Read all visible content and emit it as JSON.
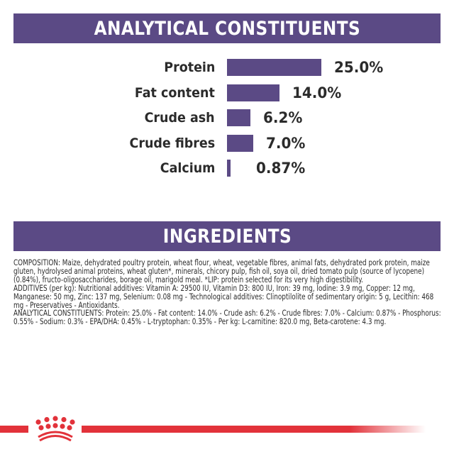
{
  "sections": {
    "analytical": {
      "title": "ANALYTICAL CONSTITUENTS"
    },
    "ingredients": {
      "title": "INGREDIENTS"
    }
  },
  "colors": {
    "accent_purple": "#5b4a85",
    "brand_red": "#e2323a",
    "text": "#2b2b2b"
  },
  "constituents": [
    {
      "label": "Protein",
      "value": "25.0%",
      "percent": 25.0
    },
    {
      "label": "Fat content",
      "value": "14.0%",
      "percent": 14.0
    },
    {
      "label": "Crude ash",
      "value": "6.2%",
      "percent": 6.2
    },
    {
      "label": "Crude fibres",
      "value": "7.0%",
      "percent": 7.0
    },
    {
      "label": "Calcium",
      "value": "0.87%",
      "percent": 0.87
    }
  ],
  "ingredients": {
    "composition": "COMPOSITION: Maize, dehydrated poultry protein, wheat flour, wheat, vegetable fibres, animal fats, dehydrated pork protein, maize gluten, hydrolysed animal proteins, wheat gluten*, minerals, chicory pulp, fish oil, soya oil, dried tomato pulp (source of lycopene) (0.84%), fructo-oligosaccharides, borage oil, marigold meal. *LIP: protein selected for its very high digestibility.",
    "additives": "ADDITIVES (per kg): Nutritional additives: Vitamin A: 29500 IU, Vitamin D3: 800 IU, Iron: 39 mg, Iodine: 3.9 mg, Copper: 12 mg, Manganese: 50 mg, Zinc: 137 mg, Selenium: 0.08 mg - Technological additives: Clinoptilolite of sedimentary origin: 5 g, Lecithin: 468 mg - Preservatives - Antioxidants.",
    "analytical": "ANALYTICAL CONSTITUENTS: Protein: 25.0% - Fat content: 14.0% - Crude ash: 6.2% - Crude fibres: 7.0% - Calcium: 0.87% - Phosphorus: 0.55% - Sodium: 0.3% - EPA/DHA: 0.45% - L-tryptophan: 0.35% - Per kg: L-carnitine: 820.0 mg, Beta-carotene: 4.3 mg."
  },
  "footer": {
    "logo_icon": "royal-canin-crown-icon"
  }
}
